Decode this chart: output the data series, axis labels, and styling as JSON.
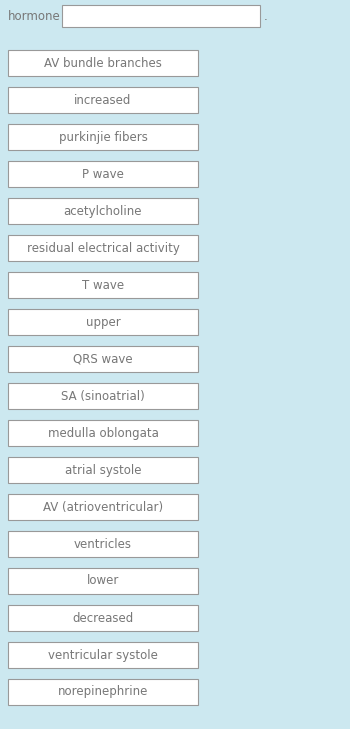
{
  "background_color": "#cce8f0",
  "title_text": "hormone",
  "dot_text": ".",
  "items": [
    "AV bundle branches",
    "increased",
    "purkinjie fibers",
    "P wave",
    "acetylcholine",
    "residual electrical activity",
    "T wave",
    "upper",
    "QRS wave",
    "SA (sinoatrial)",
    "medulla oblongata",
    "atrial systole",
    "AV (atrioventricular)",
    "ventricles",
    "lower",
    "decreased",
    "ventricular systole",
    "norepinephrine"
  ],
  "box_facecolor": "#ffffff",
  "box_edgecolor": "#999999",
  "text_color": "#777777",
  "font_size": 8.5,
  "header_font_size": 8.5,
  "fig_width": 3.5,
  "fig_height": 7.29,
  "dpi": 100
}
